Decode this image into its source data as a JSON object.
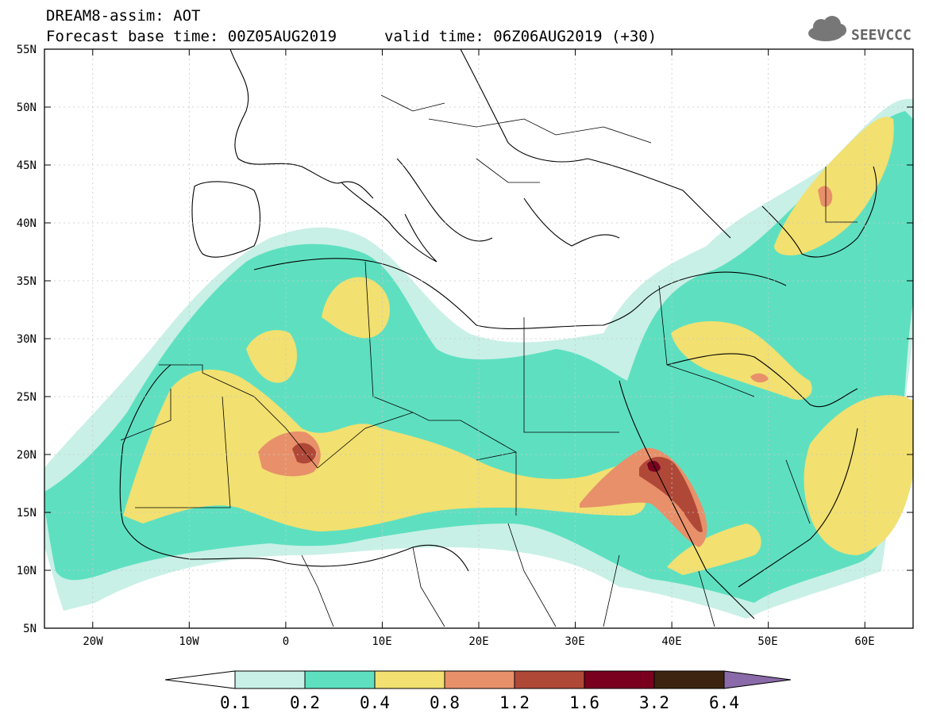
{
  "header": {
    "title_line1": "DREAM8-assim: AOT",
    "base_time_label": "Forecast base time: 00Z05AUG2019",
    "valid_time_label": "valid time: 06Z06AUG2019 (+30)"
  },
  "logo": {
    "text": "SEEVCCC"
  },
  "map": {
    "lon_ticks": [
      "20W",
      "10W",
      "0",
      "10E",
      "20E",
      "30E",
      "40E",
      "50E",
      "60E"
    ],
    "lat_ticks": [
      "55N",
      "50N",
      "45N",
      "40N",
      "35N",
      "30N",
      "25N",
      "20N",
      "15N",
      "10N",
      "5N"
    ],
    "lon_range": [
      -25,
      65
    ],
    "lat_range": [
      5,
      55
    ]
  },
  "colorbar": {
    "labels": [
      "0.1",
      "0.2",
      "0.4",
      "0.8",
      "1.2",
      "1.6",
      "3.2",
      "6.4"
    ],
    "colors": {
      "c01": "#c8f0e6",
      "c02": "#5ee0c0",
      "c04": "#f2e070",
      "c08": "#e8906a",
      "c12": "#b04838",
      "c16": "#7a0020",
      "c32": "#3c2410",
      "c64": "#8a6aa8"
    }
  }
}
